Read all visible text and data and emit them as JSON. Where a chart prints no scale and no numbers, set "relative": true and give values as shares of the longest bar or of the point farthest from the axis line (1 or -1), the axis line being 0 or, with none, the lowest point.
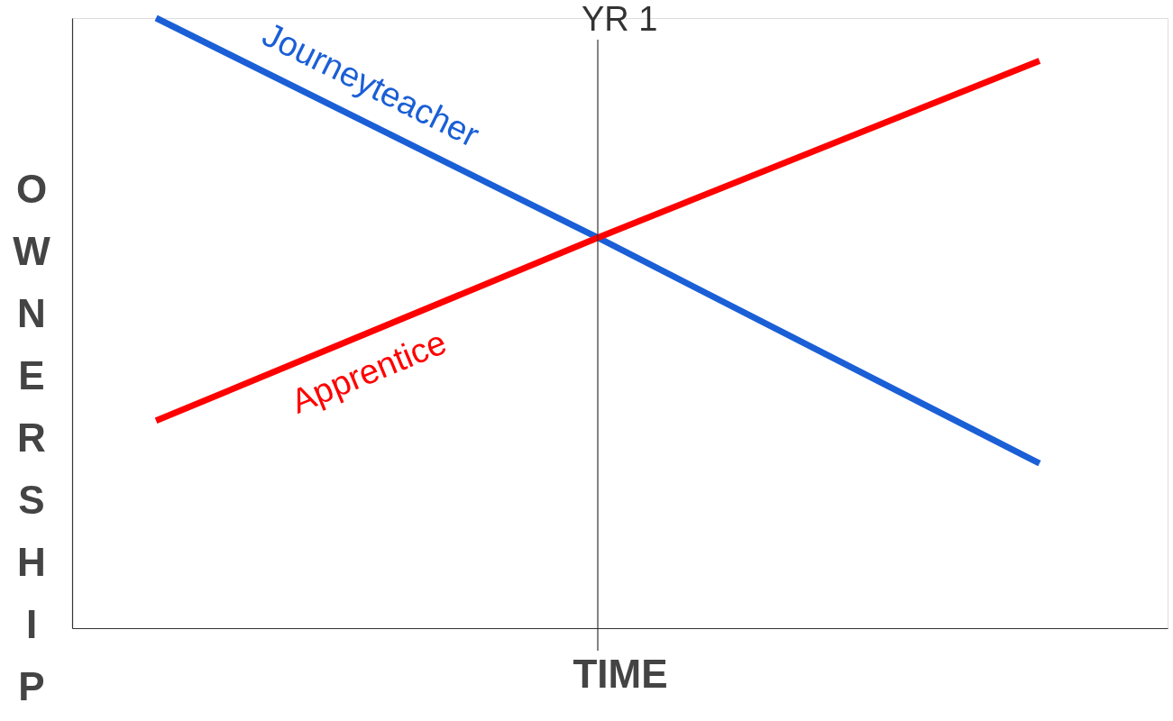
{
  "chart_data": {
    "type": "line",
    "relative": true,
    "xlabel": "TIME",
    "ylabel": "OWNERSHIP",
    "categories": [
      null,
      null,
      null
    ],
    "series": [
      {
        "name": "Journeyteacher",
        "color": "#1a5fd6",
        "values": [
          1,
          0.64,
          0.27
        ]
      },
      {
        "name": "Apprentice",
        "color": "#ff0000",
        "values": [
          0.34,
          0.64,
          0.93
        ]
      }
    ],
    "annotations": [
      "YR 1"
    ]
  }
}
